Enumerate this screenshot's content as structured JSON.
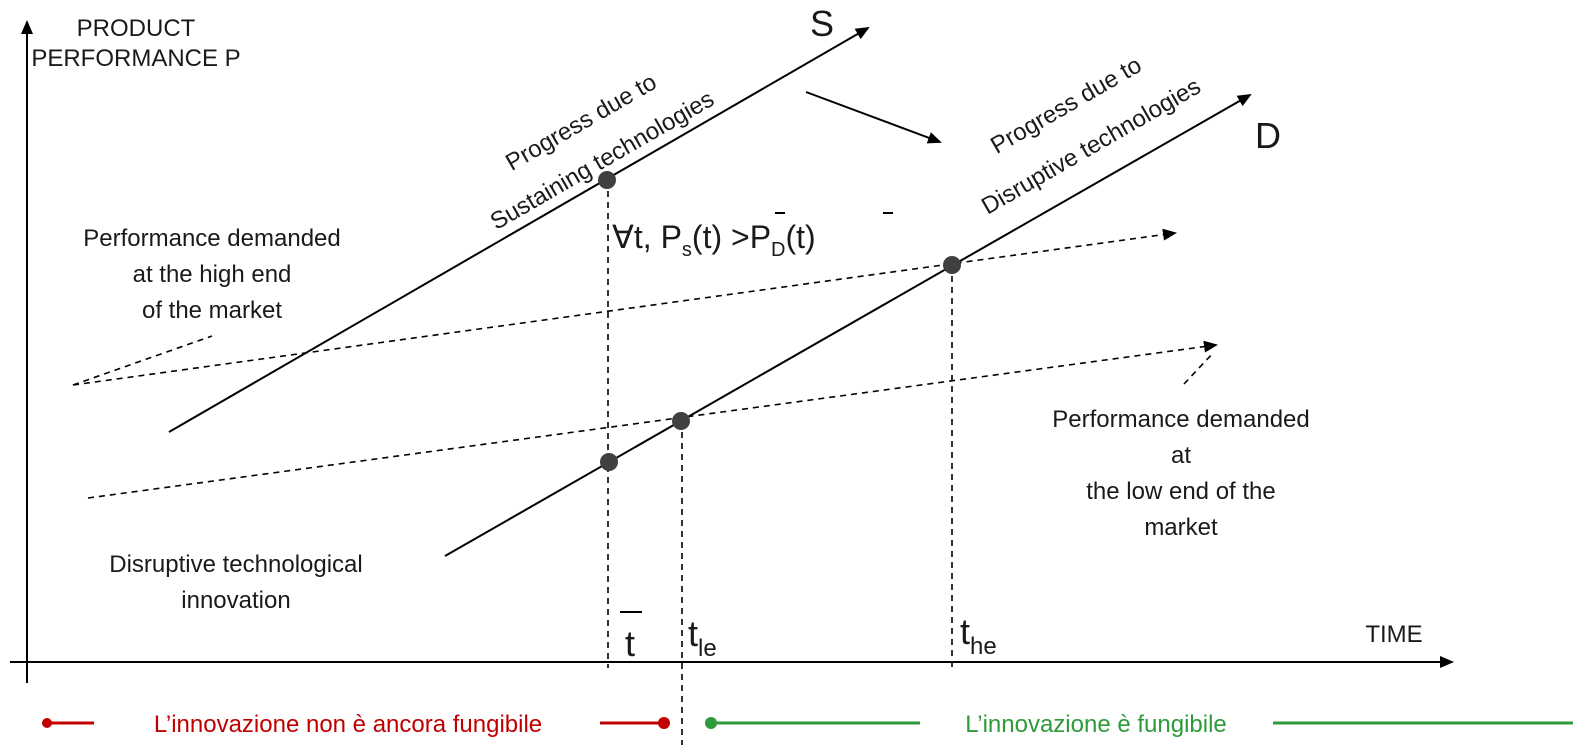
{
  "axes": {
    "y_label_line1": "PRODUCT",
    "y_label_line2": "PERFORMANCE P",
    "x_label": "TIME"
  },
  "curves": {
    "s_label": "S",
    "d_label": "D",
    "sustaining_line1": "Progress due to",
    "sustaining_line2": "Sustaining technologies",
    "disruptive_line1": "Progress due to",
    "disruptive_line2": "Disruptive technologies"
  },
  "formula": {
    "forall": "∀t, P",
    "s_sub": "s",
    "mid": "(t) >P",
    "d_sub": "D",
    "end": "(t)"
  },
  "high_end": {
    "line1": "Performance demanded",
    "line2": "at the high end",
    "line3": "of the market"
  },
  "low_end": {
    "line1": "Performance demanded",
    "line2": "at",
    "line3": "the low end of the",
    "line4": "market"
  },
  "disruptive_innovation": {
    "line1": "Disruptive technological",
    "line2": "innovation"
  },
  "time_marks": {
    "tbar": "t",
    "t_le_base": "t",
    "t_le_sub": "le",
    "t_he_base": "t",
    "t_he_sub": "he"
  },
  "bottom": {
    "not_yet": "L’innovazione non è ancora fungibile",
    "fungible": "L’innovazione è fungibile"
  },
  "colors": {
    "red": "#c00000",
    "green": "#2e9a3a",
    "dot": "#404040"
  }
}
